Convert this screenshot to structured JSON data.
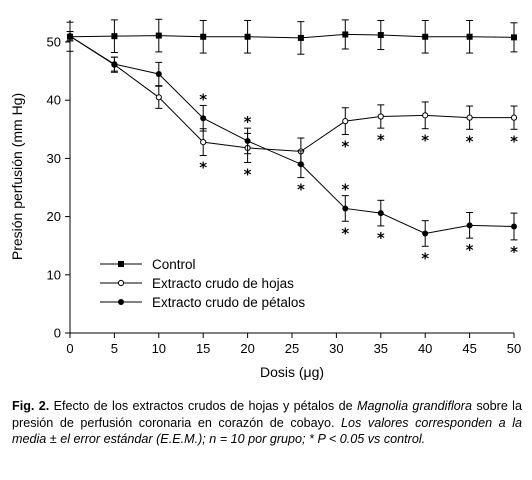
{
  "chart_data": {
    "type": "line",
    "xlabel": "Dosis (μg)",
    "ylabel": "Presión perfusión (mm Hg)",
    "xlim": [
      0,
      50
    ],
    "ylim": [
      0,
      55
    ],
    "xticks": [
      "0",
      "5",
      "10",
      "15",
      "20",
      "25",
      "30",
      "35",
      "40",
      "45",
      "50"
    ],
    "yticks": [
      "0",
      "10",
      "20",
      "30",
      "40",
      "50"
    ],
    "grid": false,
    "legend_position": "bottom-left",
    "significance_marker": "*",
    "x": [
      0,
      5,
      10,
      15,
      20,
      26,
      31,
      35,
      40,
      45,
      50
    ],
    "series": [
      {
        "name": "Control",
        "marker": "square",
        "values": [
          50.9,
          51.0,
          51.1,
          50.9,
          50.9,
          50.7,
          51.3,
          51.2,
          50.9,
          50.9,
          50.8
        ],
        "error": [
          2.5,
          2.8,
          2.8,
          2.8,
          2.8,
          2.8,
          2.5,
          2.5,
          2.8,
          2.8,
          2.5
        ]
      },
      {
        "name": "Extracto crudo de hojas",
        "marker": "open-circle",
        "values": [
          51.0,
          46.1,
          40.5,
          32.8,
          31.8,
          31.2,
          36.4,
          37.2,
          37.4,
          37.0,
          37.0
        ],
        "error": [
          0.8,
          1.3,
          1.9,
          2.3,
          2.5,
          2.3,
          2.3,
          2.0,
          2.3,
          2.0,
          2.0
        ],
        "significant_above": [
          false,
          false,
          false,
          false,
          false,
          false,
          false,
          false,
          false,
          false,
          false
        ],
        "significant_below": [
          false,
          false,
          false,
          true,
          true,
          false,
          true,
          true,
          true,
          true,
          true
        ]
      },
      {
        "name": "Extracto crudo de pétalos",
        "marker": "filled-circle",
        "values": [
          51.0,
          46.2,
          44.5,
          36.9,
          33.0,
          29.0,
          21.4,
          20.6,
          17.1,
          18.5,
          18.3
        ],
        "error": [
          0.8,
          1.2,
          2.0,
          2.2,
          2.2,
          2.3,
          2.2,
          2.2,
          2.2,
          2.2,
          2.3
        ],
        "significant_above": [
          false,
          false,
          false,
          true,
          true,
          false,
          true,
          false,
          false,
          false,
          false
        ],
        "significant_below": [
          false,
          false,
          false,
          false,
          false,
          true,
          true,
          true,
          true,
          true,
          true
        ]
      }
    ]
  },
  "caption": {
    "fig_label": "Fig. 2.",
    "text_1": " Efecto de los extractos crudos de hojas y pétalos de ",
    "species": "Magnolia grandiflora",
    "text_2": " sobre la presión de perfusión coronaria en corazón de cobayo. ",
    "text_3": "Los valores corresponden a la media ± el error estándar (E.E.M.); n = 10 por grupo; * P < 0.05 vs control."
  }
}
